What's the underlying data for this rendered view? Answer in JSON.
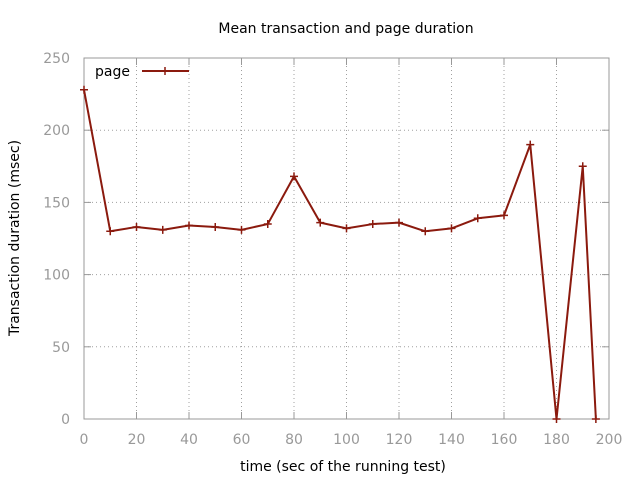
{
  "chart_data": {
    "type": "line",
    "title": "Mean transaction and page duration",
    "xlabel": "time (sec of the running test)",
    "ylabel": "Transaction duration (msec)",
    "xlim": [
      0,
      200
    ],
    "ylim": [
      0,
      250
    ],
    "x_ticks": [
      0,
      20,
      40,
      60,
      80,
      100,
      120,
      140,
      160,
      180,
      200
    ],
    "y_ticks": [
      0,
      50,
      100,
      150,
      200,
      250
    ],
    "grid": true,
    "legend_position": "top-left",
    "series": [
      {
        "name": "page",
        "color": "#8b1a0e",
        "marker": "plus",
        "x": [
          0,
          10,
          20,
          30,
          40,
          50,
          60,
          70,
          80,
          90,
          100,
          110,
          120,
          130,
          140,
          150,
          160,
          170,
          180,
          190,
          195
        ],
        "y": [
          228,
          130,
          133,
          131,
          134,
          133,
          131,
          135,
          168,
          136,
          132,
          135,
          136,
          130,
          132,
          139,
          141,
          190,
          0,
          175,
          0
        ]
      }
    ]
  }
}
